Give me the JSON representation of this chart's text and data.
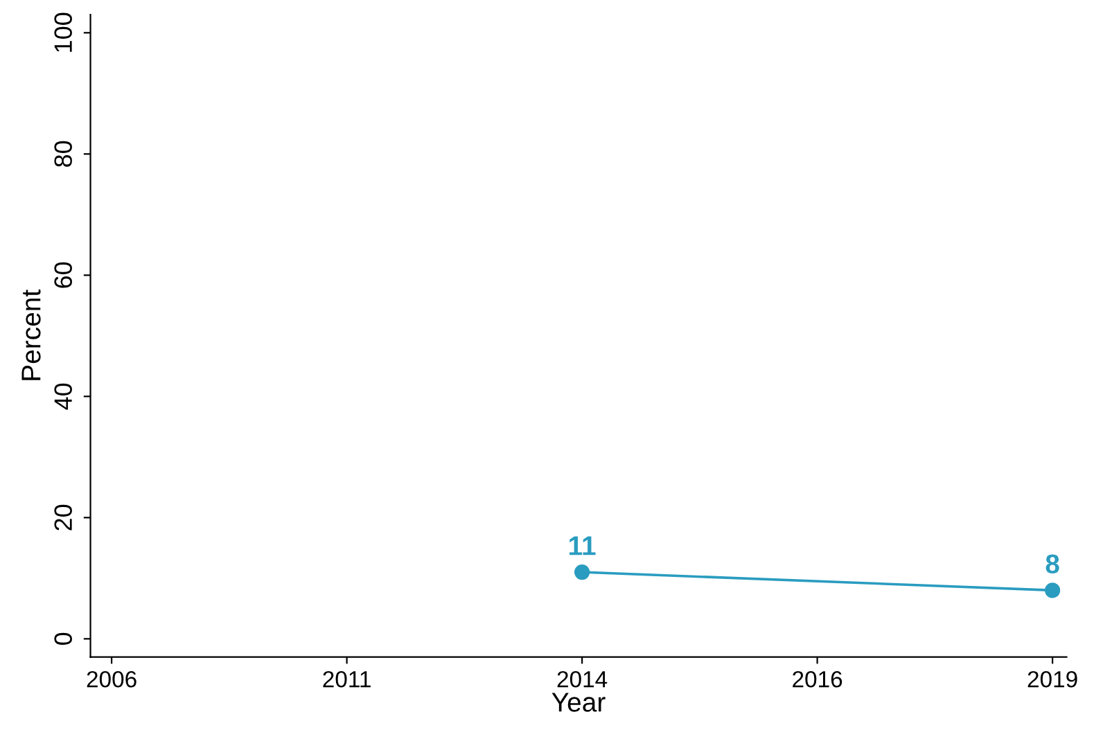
{
  "chart_data": {
    "type": "line",
    "xlabel": "Year",
    "ylabel": "Percent",
    "categories": [
      "2006",
      "2011",
      "2014",
      "2016",
      "2019"
    ],
    "series": [
      {
        "color": "#2a9cc0",
        "values": [
          null,
          null,
          11,
          null,
          8
        ]
      }
    ],
    "ylim": [
      -3,
      103
    ],
    "yticks": [
      0,
      20,
      40,
      60,
      80,
      100
    ],
    "data_labels": true,
    "marker": "circle",
    "grid": false,
    "legend": false
  }
}
